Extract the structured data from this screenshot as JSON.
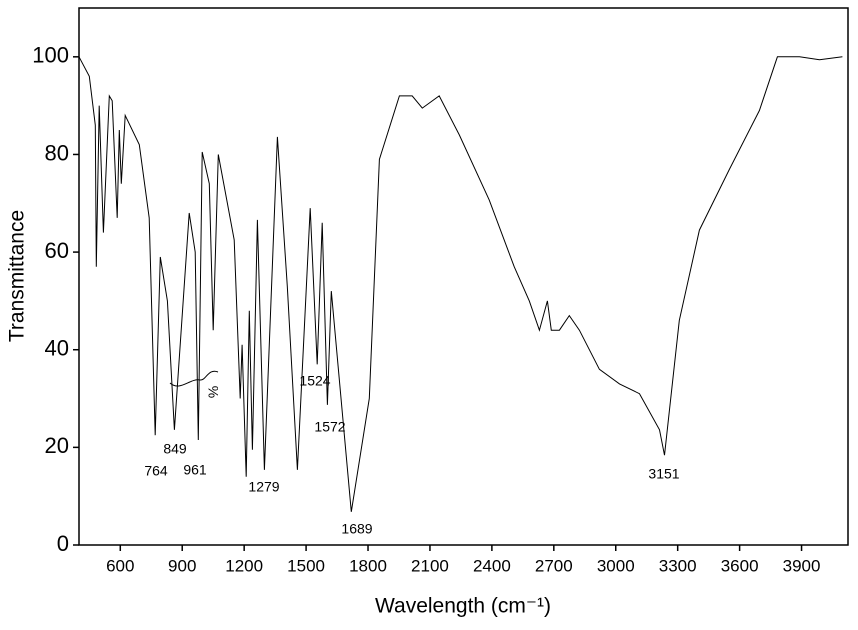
{
  "chart_data": {
    "type": "line",
    "x_label": "Wavelength (cm⁻¹)",
    "y_label": "Transmittance",
    "xlim": [
      400,
      4125
    ],
    "ylim": [
      0,
      110
    ],
    "xticks": [
      600,
      900,
      1200,
      1500,
      1800,
      2100,
      2400,
      2700,
      3000,
      3300,
      3600,
      3900
    ],
    "yticks": [
      0,
      20,
      40,
      60,
      80,
      100
    ],
    "color": "#000000",
    "x": [
      400,
      450,
      479,
      484,
      498,
      518,
      547,
      561,
      585,
      595,
      605,
      624,
      692,
      740,
      769,
      794,
      828,
      862,
      934,
      963,
      978,
      997,
      1031,
      1050,
      1075,
      1152,
      1181,
      1190,
      1210,
      1225,
      1240,
      1264,
      1298,
      1361,
      1409,
      1458,
      1520,
      1554,
      1578,
      1603,
      1622,
      1719,
      1806,
      1855,
      1952,
      2014,
      2063,
      2145,
      2242,
      2387,
      2508,
      2581,
      2630,
      2669,
      2688,
      2727,
      2775,
      2824,
      2921,
      3018,
      3115,
      3212,
      3236,
      3308,
      3405,
      3551,
      3696,
      3783,
      3890,
      3987,
      4098
    ],
    "values": [
      100,
      96,
      86,
      57,
      90,
      64,
      92,
      91,
      67,
      85,
      74,
      88,
      82,
      67,
      22.5,
      59,
      50,
      23.6,
      68,
      60,
      21.5,
      80.5,
      74,
      44,
      80,
      62.5,
      30,
      41,
      14,
      48,
      19.5,
      66.6,
      15.4,
      83.6,
      53,
      15.4,
      69,
      37,
      66,
      28.7,
      52,
      6.8,
      30,
      79,
      92,
      92,
      89.5,
      92,
      84,
      70.7,
      57,
      50,
      44,
      50,
      44,
      44,
      47,
      44,
      36,
      33,
      31,
      23.6,
      18.4,
      46,
      64.5,
      77,
      89,
      100,
      100,
      99.4,
      100
    ],
    "annotations": [
      "764",
      "849",
      "961",
      "1279",
      "1524",
      "1572",
      "1689",
      "3151",
      "%"
    ]
  }
}
